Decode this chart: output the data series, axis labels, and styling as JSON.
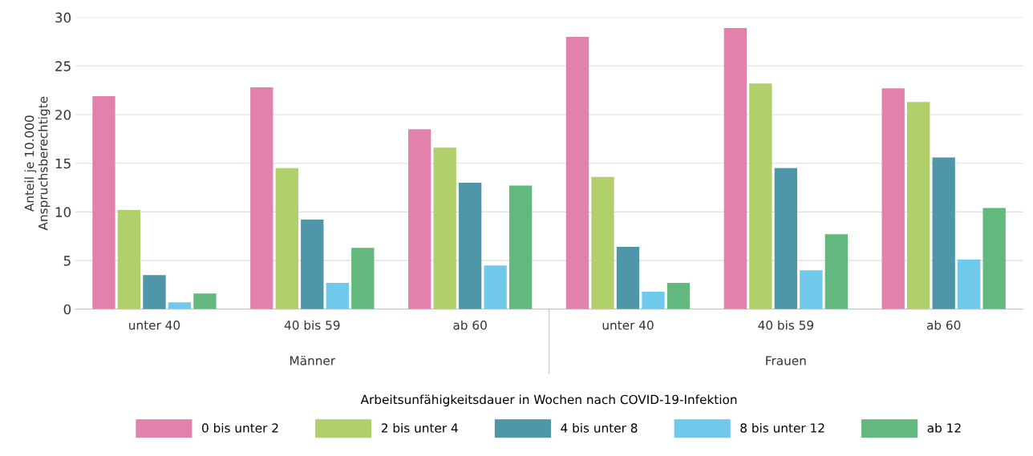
{
  "chart_data": {
    "type": "bar",
    "ylabel": "Anteil je 10.000\nAnspruchsberechtigte",
    "legend_title": "Arbeitsunfähigkeitsdauer in Wochen nach COVID-19-Infektion",
    "categories": [
      "unter 40",
      "40 bis 59",
      "ab 60",
      "unter 40",
      "40 bis 59",
      "ab 60"
    ],
    "series": [
      {
        "name": "0 bis unter 2",
        "color": "#e381ad",
        "values": [
          21.9,
          22.8,
          18.5,
          28.0,
          28.9,
          22.7
        ]
      },
      {
        "name": "2 bis unter 4",
        "color": "#b1cf6a",
        "values": [
          10.2,
          14.5,
          16.6,
          13.6,
          23.2,
          21.3
        ]
      },
      {
        "name": "4 bis unter 8",
        "color": "#4f96a8",
        "values": [
          3.5,
          9.2,
          13.0,
          6.4,
          14.5,
          15.6
        ]
      },
      {
        "name": "8 bis unter 12",
        "color": "#6ec9ea",
        "values": [
          0.7,
          2.7,
          4.5,
          1.8,
          4.0,
          5.1
        ]
      },
      {
        "name": "ab 12",
        "color": "#63b87d",
        "values": [
          1.6,
          6.3,
          12.7,
          2.7,
          7.7,
          10.4
        ]
      }
    ],
    "annotations": [
      "Männer",
      "Frauen"
    ],
    "ylim": [
      0,
      30
    ],
    "yticks": [
      0,
      5,
      10,
      15,
      20,
      25,
      30
    ],
    "grid": "y",
    "legend": "bottom"
  }
}
